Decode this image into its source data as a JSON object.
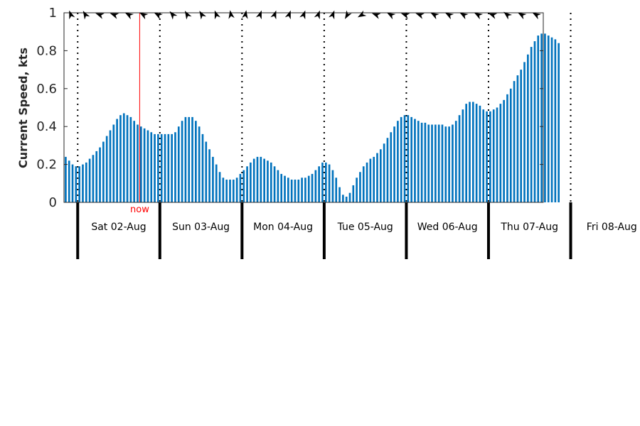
{
  "chart_data": {
    "type": "bar",
    "ylabel": "Current Speed, kts",
    "ylim": [
      0,
      1
    ],
    "yticks": [
      "0",
      "0.2",
      "0.4",
      "0.6",
      "0.8",
      "1"
    ],
    "grid": false,
    "bar_color": "#0072bd",
    "now_color": "#ff0000",
    "now_label": "now",
    "now_hour": 22,
    "x_unit": "hours since 01-Aug 20:00",
    "day_labels": [
      "Sat 02-Aug",
      "Sun 03-Aug",
      "Mon 04-Aug",
      "Tue 05-Aug",
      "Wed 06-Aug",
      "Thu 07-Aug",
      "Fri 08-Aug"
    ],
    "values": [
      0.24,
      0.22,
      0.2,
      0.19,
      0.19,
      0.2,
      0.21,
      0.23,
      0.25,
      0.27,
      0.29,
      0.32,
      0.35,
      0.38,
      0.41,
      0.44,
      0.46,
      0.47,
      0.46,
      0.45,
      0.43,
      0.41,
      0.4,
      0.39,
      0.38,
      0.37,
      0.36,
      0.36,
      0.36,
      0.36,
      0.36,
      0.36,
      0.37,
      0.4,
      0.43,
      0.45,
      0.45,
      0.45,
      0.43,
      0.4,
      0.36,
      0.32,
      0.28,
      0.24,
      0.2,
      0.16,
      0.13,
      0.12,
      0.12,
      0.12,
      0.13,
      0.15,
      0.17,
      0.19,
      0.21,
      0.23,
      0.24,
      0.24,
      0.23,
      0.22,
      0.21,
      0.19,
      0.17,
      0.15,
      0.14,
      0.13,
      0.12,
      0.12,
      0.12,
      0.13,
      0.13,
      0.14,
      0.15,
      0.17,
      0.19,
      0.21,
      0.21,
      0.2,
      0.17,
      0.13,
      0.08,
      0.04,
      0.03,
      0.05,
      0.09,
      0.13,
      0.16,
      0.19,
      0.21,
      0.23,
      0.24,
      0.26,
      0.28,
      0.31,
      0.34,
      0.37,
      0.4,
      0.43,
      0.45,
      0.46,
      0.46,
      0.45,
      0.44,
      0.43,
      0.42,
      0.42,
      0.41,
      0.41,
      0.41,
      0.41,
      0.41,
      0.4,
      0.4,
      0.41,
      0.43,
      0.46,
      0.49,
      0.52,
      0.53,
      0.53,
      0.52,
      0.51,
      0.49,
      0.48,
      0.48,
      0.49,
      0.5,
      0.52,
      0.54,
      0.57,
      0.6,
      0.64,
      0.67,
      0.7,
      0.74,
      0.78,
      0.82,
      0.85,
      0.88,
      0.89,
      0.89,
      0.88,
      0.87,
      0.86,
      0.84
    ],
    "arrow_directions_deg": [
      340,
      330,
      290,
      290,
      300,
      300,
      300,
      320,
      330,
      330,
      340,
      350,
      10,
      20,
      20,
      20,
      20,
      20,
      20,
      210,
      240,
      290,
      300,
      290,
      290,
      300,
      300,
      300,
      300,
      290,
      310,
      300,
      300
    ]
  }
}
